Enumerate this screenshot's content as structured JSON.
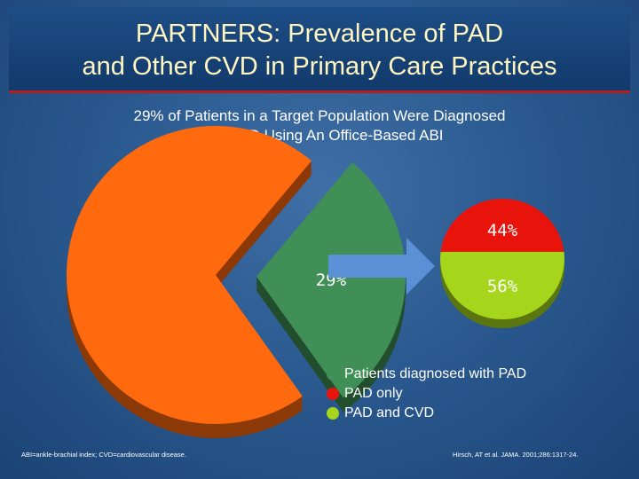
{
  "header": {
    "title_line1": "PARTNERS: Prevalence of PAD",
    "title_line2": "and Other CVD in Primary Care Practices"
  },
  "subtitle": {
    "line1": "29% of Patients in a Target Population Were Diagnosed",
    "line2": "With PAD Using An Office-Based ABI"
  },
  "chart_data": [
    {
      "type": "pie",
      "title": "",
      "slices": [
        {
          "label": "Patients diagnosed with PAD",
          "value": 29,
          "display": "29%",
          "color": "#3f8f56",
          "exploded": true
        },
        {
          "label": "",
          "value": 71,
          "display": "",
          "color": "#ff6a0f",
          "exploded": false
        }
      ]
    },
    {
      "type": "pie",
      "title": "",
      "slices": [
        {
          "label": "PAD only",
          "value": 44,
          "display": "44%",
          "color": "#e8140c"
        },
        {
          "label": "PAD and CVD",
          "value": 56,
          "display": "56%",
          "color": "#a6d61c"
        }
      ]
    }
  ],
  "legend": [
    {
      "label": "Patients diagnosed with PAD",
      "color": "#3f8f56"
    },
    {
      "label": "PAD only",
      "color": "#e8140c"
    },
    {
      "label": "PAD and CVD",
      "color": "#a6d61c"
    }
  ],
  "colors": {
    "background": "#2b5a90",
    "title_text": "#fff6c0",
    "title_underline": "#b51f1f",
    "arrow": "#5b8fd6"
  },
  "footnotes": {
    "left": "ABI=ankle-brachial index; CVD=cardiovascular disease.",
    "right": "Hirsch, AT et al. JAMA. 2001;286:1317-24."
  }
}
